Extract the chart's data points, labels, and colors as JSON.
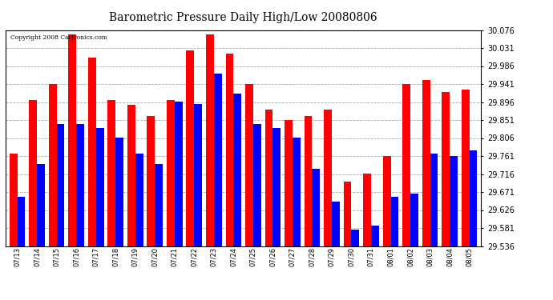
{
  "title": "Barometric Pressure Daily High/Low 20080806",
  "copyright": "Copyright 2008 Cartronics.com",
  "background_color": "#ffffff",
  "plot_bg_color": "#ffffff",
  "grid_color": "#aaaaaa",
  "bar_width": 0.4,
  "ylim_min": 29.536,
  "ylim_max": 30.076,
  "yticks": [
    29.536,
    29.581,
    29.626,
    29.671,
    29.716,
    29.761,
    29.806,
    29.851,
    29.896,
    29.941,
    29.986,
    30.031,
    30.076
  ],
  "dates": [
    "07/13",
    "07/14",
    "07/15",
    "07/16",
    "07/17",
    "07/18",
    "07/19",
    "07/20",
    "07/21",
    "07/22",
    "07/23",
    "07/24",
    "07/25",
    "07/26",
    "07/27",
    "07/28",
    "07/29",
    "07/30",
    "07/31",
    "08/01",
    "08/02",
    "08/03",
    "08/04",
    "08/05"
  ],
  "highs": [
    29.768,
    29.901,
    29.941,
    30.065,
    30.008,
    29.901,
    29.888,
    29.861,
    29.901,
    30.025,
    30.065,
    30.018,
    29.941,
    29.878,
    29.851,
    29.861,
    29.878,
    29.698,
    29.718,
    29.761,
    29.941,
    29.951,
    29.921,
    29.928
  ],
  "lows": [
    29.658,
    29.741,
    29.841,
    29.841,
    29.831,
    29.808,
    29.768,
    29.741,
    29.898,
    29.891,
    29.968,
    29.918,
    29.841,
    29.831,
    29.808,
    29.728,
    29.648,
    29.578,
    29.588,
    29.658,
    29.668,
    29.768,
    29.761,
    29.775
  ],
  "high_color": "#ff0000",
  "low_color": "#0000ff"
}
